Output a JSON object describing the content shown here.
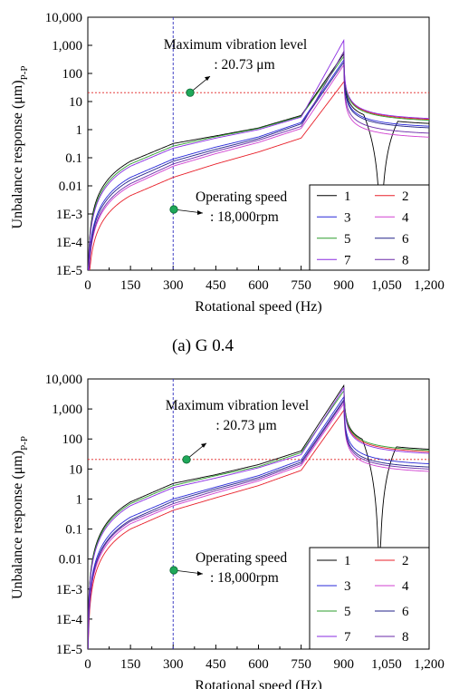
{
  "charts": [
    {
      "caption": "(a)  G 0.4",
      "xlabel": "Rotational speed (Hz)",
      "ylabel_main": "Unbalance response (μm)",
      "ylabel_sub": "P-P",
      "xticks": [
        "0",
        "150",
        "300",
        "450",
        "600",
        "750",
        "900",
        "1,050",
        "1,200"
      ],
      "yticks": [
        "1E-5",
        "1E-4",
        "1E-3",
        "0.01",
        "0.1",
        "1",
        "10",
        "100",
        "1,000",
        "10,000"
      ],
      "annotation_max": [
        "Maximum vibration level",
        ": 20.73 μm"
      ],
      "annotation_op": [
        "Operating speed",
        ": 18,000rpm"
      ],
      "legend": [
        "1",
        "2",
        "3",
        "4",
        "5",
        "6",
        "7",
        "8"
      ]
    },
    {
      "caption": "",
      "xlabel": "Rotational speed (Hz)",
      "ylabel_main": "Unbalance response (μm)",
      "ylabel_sub": "P-P",
      "xticks": [
        "0",
        "150",
        "300",
        "450",
        "600",
        "750",
        "900",
        "1,050",
        "1,200"
      ],
      "yticks": [
        "1E-5",
        "1E-4",
        "1E-3",
        "0.01",
        "0.1",
        "1",
        "10",
        "100",
        "1,000",
        "10,000"
      ],
      "annotation_max": [
        "Maximum vibration level",
        ": 20.73 μm"
      ],
      "annotation_op": [
        "Operating speed",
        ": 18,000rpm"
      ],
      "legend": [
        "1",
        "2",
        "3",
        "4",
        "5",
        "6",
        "7",
        "8"
      ]
    }
  ],
  "chart_data": [
    {
      "type": "line",
      "title": "(a)  G 0.4",
      "xlabel": "Rotational speed (Hz)",
      "ylabel": "Unbalance response (μm)P-P",
      "xlim": [
        0,
        1200
      ],
      "ylim": [
        1e-05,
        10000
      ],
      "yscale": "log",
      "grid": false,
      "legend_position": "bottom-right",
      "reference_lines": {
        "vertical_x": 300,
        "horizontal_y": 20.73
      },
      "resonance_hz": 900,
      "x": [
        0,
        150,
        300,
        450,
        600,
        750,
        900,
        1050,
        1200
      ],
      "series": [
        {
          "name": "1",
          "color": "#000000",
          "values": [
            1e-05,
            0.075,
            0.32,
            0.6,
            1.15,
            3.2,
            500,
            0.01,
            2.0
          ]
        },
        {
          "name": "2",
          "color": "#e8202a",
          "values": [
            1e-05,
            0.0045,
            0.02,
            0.06,
            0.16,
            0.5,
            50,
            1.0,
            2.8
          ]
        },
        {
          "name": "3",
          "color": "#2828d8",
          "values": [
            1e-05,
            0.02,
            0.09,
            0.24,
            0.55,
            1.8,
            300,
            2.2,
            1.6
          ]
        },
        {
          "name": "4",
          "color": "#d040d0",
          "values": [
            1e-05,
            0.01,
            0.05,
            0.14,
            0.35,
            1.1,
            200,
            1.3,
            0.65
          ]
        },
        {
          "name": "5",
          "color": "#2e9e2e",
          "values": [
            1e-05,
            0.06,
            0.26,
            0.56,
            1.1,
            3.0,
            400,
            3.3,
            2.6
          ]
        },
        {
          "name": "6",
          "color": "#222288",
          "values": [
            1e-05,
            0.016,
            0.075,
            0.2,
            0.48,
            1.6,
            250,
            2.0,
            1.4
          ]
        },
        {
          "name": "7",
          "color": "#8a2be2",
          "values": [
            1e-05,
            0.05,
            0.22,
            0.5,
            1.0,
            2.8,
            1500,
            2.8,
            3.0
          ]
        },
        {
          "name": "8",
          "color": "#6a2aa8",
          "values": [
            1e-05,
            0.012,
            0.06,
            0.17,
            0.42,
            1.3,
            600,
            1.6,
            0.9
          ]
        }
      ]
    },
    {
      "type": "line",
      "title": "",
      "xlabel": "Rotational speed (Hz)",
      "ylabel": "Unbalance response (μm)P-P",
      "xlim": [
        0,
        1200
      ],
      "ylim": [
        1e-05,
        10000
      ],
      "yscale": "log",
      "grid": false,
      "legend_position": "bottom-right",
      "reference_lines": {
        "vertical_x": 300,
        "horizontal_y": 20.73
      },
      "resonance_hz": 900,
      "x": [
        0,
        150,
        300,
        450,
        600,
        750,
        900,
        1050,
        1200
      ],
      "series": [
        {
          "name": "1",
          "color": "#000000",
          "values": [
            1e-05,
            0.8,
            3.3,
            6.5,
            14,
            40,
            6000,
            0.05,
            55
          ]
        },
        {
          "name": "2",
          "color": "#e8202a",
          "values": [
            1e-05,
            0.1,
            0.42,
            1.1,
            2.8,
            9,
            900,
            15,
            45
          ]
        },
        {
          "name": "3",
          "color": "#2828d8",
          "values": [
            1e-05,
            0.25,
            1.0,
            2.5,
            6,
            20,
            2500,
            25,
            18
          ]
        },
        {
          "name": "4",
          "color": "#d040d0",
          "values": [
            1e-05,
            0.15,
            0.6,
            1.6,
            4,
            13,
            1500,
            16,
            10
          ]
        },
        {
          "name": "5",
          "color": "#2e9e2e",
          "values": [
            1e-05,
            0.7,
            2.8,
            6,
            12,
            35,
            4000,
            40,
            50
          ]
        },
        {
          "name": "6",
          "color": "#222288",
          "values": [
            1e-05,
            0.2,
            0.85,
            2.2,
            5.2,
            17,
            2000,
            22,
            14
          ]
        },
        {
          "name": "7",
          "color": "#8a2be2",
          "values": [
            1e-05,
            0.6,
            2.4,
            5,
            11,
            30,
            5000,
            35,
            40
          ]
        },
        {
          "name": "8",
          "color": "#6a2aa8",
          "values": [
            1e-05,
            0.18,
            0.7,
            1.9,
            4.6,
            15,
            1800,
            19,
            12
          ]
        }
      ]
    }
  ]
}
